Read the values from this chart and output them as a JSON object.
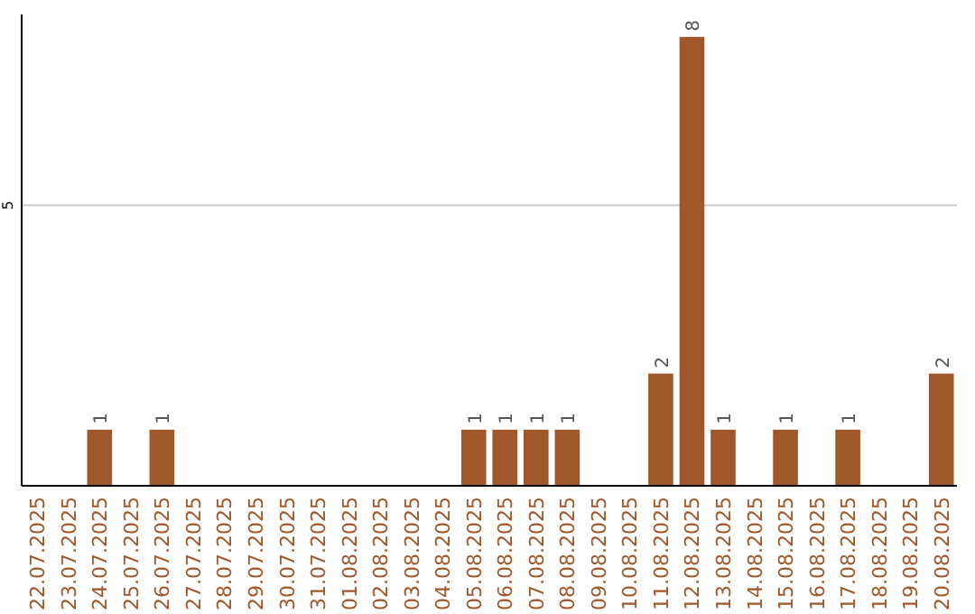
{
  "chart_data": {
    "type": "bar",
    "categories": [
      "22.07.2025",
      "23.07.2025",
      "24.07.2025",
      "25.07.2025",
      "26.07.2025",
      "27.07.2025",
      "28.07.2025",
      "29.07.2025",
      "30.07.2025",
      "31.07.2025",
      "01.08.2025",
      "02.08.2025",
      "03.08.2025",
      "04.08.2025",
      "05.08.2025",
      "06.08.2025",
      "07.08.2025",
      "08.08.2025",
      "09.08.2025",
      "10.08.2025",
      "11.08.2025",
      "12.08.2025",
      "13.08.2025",
      "14.08.2025",
      "15.08.2025",
      "16.08.2025",
      "17.08.2025",
      "18.08.2025",
      "19.08.2025",
      "20.08.2025"
    ],
    "values": [
      0,
      0,
      1,
      0,
      1,
      0,
      0,
      0,
      0,
      0,
      0,
      0,
      0,
      0,
      1,
      1,
      1,
      1,
      0,
      0,
      2,
      8,
      1,
      0,
      1,
      0,
      1,
      0,
      0,
      2
    ],
    "value_labels": [
      null,
      null,
      "1",
      null,
      "1",
      null,
      null,
      null,
      null,
      null,
      null,
      null,
      null,
      null,
      "1",
      "1",
      "1",
      "1",
      null,
      null,
      "2",
      "8",
      "1",
      null,
      "1",
      null,
      "1",
      null,
      null,
      "2"
    ],
    "color": "#a0572a",
    "ylim": [
      0,
      8.4
    ],
    "yticks": [
      5
    ],
    "grid": "y"
  }
}
